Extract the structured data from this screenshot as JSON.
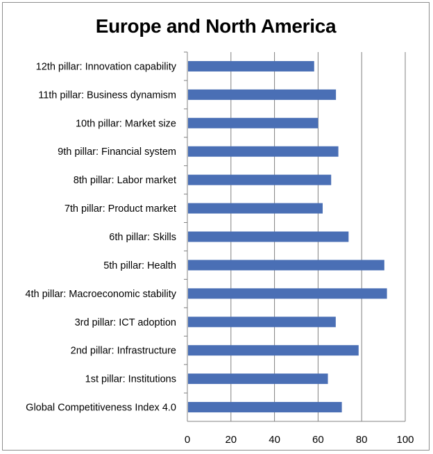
{
  "chart_data": {
    "type": "bar",
    "orientation": "horizontal",
    "title": "Europe and North America",
    "xlabel": "",
    "ylabel": "",
    "categories": [
      "Global Competitiveness Index 4.0",
      "1st pillar: Institutions",
      "2nd pillar: Infrastructure",
      "3rd pillar: ICT adoption",
      "4th pillar: Macroeconomic stability",
      "5th pillar: Health",
      "6th pillar: Skills",
      "7th pillar: Product market",
      "8th pillar: Labor market",
      "9th pillar: Financial system",
      "10th pillar: Market size",
      "11th pillar: Business dynamism",
      "12th pillar: Innovation capability"
    ],
    "values": [
      70.9,
      64.5,
      78.6,
      68.1,
      91.6,
      90.4,
      74.0,
      62.1,
      66.0,
      69.3,
      60.0,
      68.2,
      58.2
    ],
    "xlim": [
      0,
      100
    ],
    "xticks": [
      "0",
      "20",
      "40",
      "60",
      "80",
      "100"
    ],
    "grid": true,
    "legend": "none",
    "bar_color": "#4a6fb5",
    "grid_color": "#808080"
  }
}
